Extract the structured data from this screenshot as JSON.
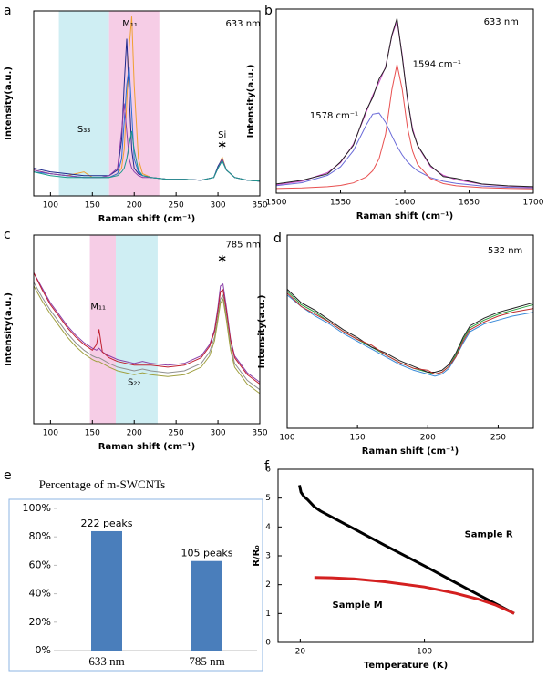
{
  "chart_data": [
    {
      "type": "line",
      "panel": "a",
      "xlabel": "Raman shift (cm⁻¹)",
      "ylabel": "Intensity(a.u.)",
      "annotations": [
        "633 nm",
        "M₁₁",
        "S₃₃",
        "Si",
        "*"
      ],
      "bands": [
        {
          "range": [
            110,
            170
          ],
          "color": "#cfeef3"
        },
        {
          "range": [
            170,
            230
          ],
          "color": "#f6cde6"
        }
      ],
      "xlim": [
        80,
        350
      ],
      "xticks": [
        100,
        150,
        200,
        250,
        300,
        350
      ],
      "ylim": [
        0,
        1
      ],
      "x": [
        80,
        100,
        120,
        140,
        150,
        160,
        170,
        180,
        185,
        188,
        191,
        194,
        197,
        200,
        205,
        210,
        220,
        240,
        260,
        280,
        295,
        300,
        305,
        310,
        320,
        335,
        350
      ],
      "series": [
        {
          "color": "#f0a030",
          "values": [
            0.14,
            0.12,
            0.11,
            0.13,
            0.1,
            0.1,
            0.1,
            0.12,
            0.15,
            0.25,
            0.5,
            0.8,
            0.97,
            0.6,
            0.2,
            0.12,
            0.1,
            0.09,
            0.09,
            0.085,
            0.1,
            0.15,
            0.21,
            0.14,
            0.1,
            0.085,
            0.08
          ]
        },
        {
          "color": "#1f2a8c",
          "values": [
            0.15,
            0.13,
            0.12,
            0.11,
            0.11,
            0.11,
            0.11,
            0.14,
            0.3,
            0.6,
            0.85,
            0.55,
            0.25,
            0.15,
            0.12,
            0.11,
            0.1,
            0.09,
            0.09,
            0.085,
            0.1,
            0.16,
            0.2,
            0.14,
            0.1,
            0.085,
            0.08
          ]
        },
        {
          "color": "#2a6fd6",
          "values": [
            0.13,
            0.12,
            0.11,
            0.1,
            0.1,
            0.1,
            0.1,
            0.12,
            0.2,
            0.4,
            0.6,
            0.7,
            0.45,
            0.2,
            0.13,
            0.11,
            0.1,
            0.09,
            0.09,
            0.085,
            0.1,
            0.15,
            0.19,
            0.14,
            0.1,
            0.085,
            0.08
          ]
        },
        {
          "color": "#8a3fa8",
          "values": [
            0.14,
            0.12,
            0.11,
            0.1,
            0.1,
            0.1,
            0.11,
            0.15,
            0.35,
            0.5,
            0.35,
            0.2,
            0.15,
            0.13,
            0.11,
            0.1,
            0.1,
            0.09,
            0.09,
            0.085,
            0.1,
            0.15,
            0.2,
            0.14,
            0.1,
            0.085,
            0.08
          ]
        },
        {
          "color": "#1a9a8a",
          "values": [
            0.13,
            0.11,
            0.1,
            0.1,
            0.1,
            0.1,
            0.1,
            0.11,
            0.13,
            0.15,
            0.2,
            0.28,
            0.35,
            0.25,
            0.14,
            0.11,
            0.1,
            0.09,
            0.09,
            0.085,
            0.1,
            0.15,
            0.19,
            0.14,
            0.1,
            0.085,
            0.08
          ]
        }
      ]
    },
    {
      "type": "line",
      "panel": "b",
      "xlabel": "Raman shift (cm⁻¹)",
      "ylabel": "Intensity(a.u.)",
      "annotations": [
        "633 nm",
        "1578 cm⁻¹",
        "1594 cm⁻¹"
      ],
      "xlim": [
        1500,
        1700
      ],
      "xticks": [
        1500,
        1550,
        1600,
        1650,
        1700
      ],
      "ylim": [
        0,
        1
      ],
      "x": [
        1500,
        1520,
        1540,
        1550,
        1560,
        1570,
        1575,
        1580,
        1585,
        1590,
        1594,
        1598,
        1602,
        1606,
        1610,
        1620,
        1630,
        1640,
        1660,
        1680,
        1700
      ],
      "series": [
        {
          "color": "#6a6ad8",
          "values": [
            0.041,
            0.057,
            0.097,
            0.143,
            0.23,
            0.37,
            0.429,
            0.435,
            0.385,
            0.311,
            0.255,
            0.208,
            0.171,
            0.143,
            0.121,
            0.085,
            0.065,
            0.053,
            0.039,
            0.032,
            0.029
          ]
        },
        {
          "color": "#e85050",
          "values": [
            0.025,
            0.028,
            0.035,
            0.042,
            0.056,
            0.088,
            0.122,
            0.187,
            0.32,
            0.564,
            0.7,
            0.564,
            0.36,
            0.229,
            0.156,
            0.079,
            0.052,
            0.04,
            0.03,
            0.026,
            0.024
          ]
        },
        {
          "color": "#d050c8",
          "values": [
            0.046,
            0.065,
            0.112,
            0.165,
            0.266,
            0.438,
            0.531,
            0.602,
            0.685,
            0.855,
            0.935,
            0.752,
            0.511,
            0.352,
            0.257,
            0.144,
            0.097,
            0.073,
            0.049,
            0.038,
            0.033
          ]
        },
        {
          "color": "#222222",
          "values": [
            0.05,
            0.07,
            0.105,
            0.17,
            0.26,
            0.45,
            0.52,
            0.62,
            0.68,
            0.86,
            0.95,
            0.74,
            0.52,
            0.34,
            0.26,
            0.15,
            0.09,
            0.08,
            0.05,
            0.04,
            0.035
          ]
        }
      ]
    },
    {
      "type": "line",
      "panel": "c",
      "xlabel": "Raman shift (cm⁻¹)",
      "ylabel": "Intensity(a.u.)",
      "annotations": [
        "785 nm",
        "M₁₁",
        "S₂₂",
        "*"
      ],
      "bands": [
        {
          "range": [
            147,
            178
          ],
          "color": "#f6cde6"
        },
        {
          "range": [
            178,
            228
          ],
          "color": "#cfeef3"
        }
      ],
      "xlim": [
        80,
        350
      ],
      "xticks": [
        100,
        150,
        200,
        250,
        300,
        350
      ],
      "ylim": [
        0,
        1
      ],
      "x": [
        80,
        90,
        100,
        110,
        120,
        130,
        140,
        150,
        155,
        158,
        162,
        170,
        180,
        200,
        210,
        220,
        240,
        260,
        280,
        290,
        296,
        300,
        303,
        306,
        310,
        315,
        320,
        335,
        350
      ],
      "series": [
        {
          "color": "#8a3fa8",
          "values": [
            0.8,
            0.72,
            0.64,
            0.58,
            0.52,
            0.47,
            0.43,
            0.4,
            0.39,
            0.4,
            0.38,
            0.36,
            0.34,
            0.32,
            0.33,
            0.32,
            0.31,
            0.32,
            0.36,
            0.42,
            0.5,
            0.62,
            0.73,
            0.74,
            0.62,
            0.45,
            0.36,
            0.27,
            0.22
          ]
        },
        {
          "color": "#c02030",
          "values": [
            0.8,
            0.71,
            0.63,
            0.57,
            0.51,
            0.46,
            0.42,
            0.39,
            0.42,
            0.5,
            0.38,
            0.35,
            0.33,
            0.31,
            0.31,
            0.31,
            0.3,
            0.31,
            0.35,
            0.41,
            0.49,
            0.6,
            0.7,
            0.71,
            0.6,
            0.44,
            0.35,
            0.26,
            0.21
          ]
        },
        {
          "color": "#909090",
          "values": [
            0.75,
            0.67,
            0.6,
            0.54,
            0.48,
            0.43,
            0.39,
            0.36,
            0.35,
            0.35,
            0.34,
            0.32,
            0.3,
            0.28,
            0.29,
            0.28,
            0.27,
            0.28,
            0.32,
            0.38,
            0.46,
            0.57,
            0.66,
            0.68,
            0.57,
            0.41,
            0.32,
            0.23,
            0.18
          ]
        },
        {
          "color": "#a0a040",
          "values": [
            0.73,
            0.65,
            0.58,
            0.52,
            0.46,
            0.41,
            0.37,
            0.34,
            0.33,
            0.33,
            0.32,
            0.3,
            0.28,
            0.26,
            0.27,
            0.26,
            0.25,
            0.26,
            0.3,
            0.36,
            0.44,
            0.55,
            0.64,
            0.66,
            0.55,
            0.39,
            0.3,
            0.21,
            0.16
          ]
        }
      ]
    },
    {
      "type": "line",
      "panel": "d",
      "xlabel": "Raman shift (cm⁻¹)",
      "ylabel": "Intensity(a.u.)",
      "annotations": [
        "532 nm"
      ],
      "xlim": [
        100,
        275
      ],
      "xticks": [
        100,
        150,
        200,
        250
      ],
      "ylim": [
        0,
        1
      ],
      "x": [
        100,
        110,
        120,
        130,
        140,
        150,
        160,
        170,
        180,
        190,
        200,
        205,
        210,
        215,
        220,
        225,
        230,
        240,
        250,
        260,
        275
      ],
      "series": [
        {
          "color": "#2aa040",
          "values": [
            0.71,
            0.64,
            0.6,
            0.55,
            0.5,
            0.46,
            0.42,
            0.38,
            0.34,
            0.31,
            0.29,
            0.28,
            0.29,
            0.32,
            0.38,
            0.46,
            0.52,
            0.56,
            0.59,
            0.61,
            0.64
          ]
        },
        {
          "color": "#3a8ad8",
          "values": [
            0.69,
            0.63,
            0.58,
            0.54,
            0.49,
            0.45,
            0.41,
            0.37,
            0.33,
            0.3,
            0.28,
            0.27,
            0.28,
            0.31,
            0.37,
            0.44,
            0.5,
            0.54,
            0.56,
            0.58,
            0.6
          ]
        },
        {
          "color": "#222222",
          "values": [
            0.72,
            0.65,
            0.61,
            0.56,
            0.51,
            0.47,
            0.42,
            0.39,
            0.35,
            0.32,
            0.29,
            0.29,
            0.3,
            0.33,
            0.39,
            0.47,
            0.53,
            0.57,
            0.6,
            0.62,
            0.65
          ]
        },
        {
          "color": "#c03030",
          "values": [
            0.7,
            0.63,
            0.59,
            0.55,
            0.5,
            0.46,
            0.43,
            0.38,
            0.34,
            0.31,
            0.3,
            0.28,
            0.29,
            0.32,
            0.37,
            0.45,
            0.51,
            0.55,
            0.58,
            0.6,
            0.62
          ]
        }
      ]
    },
    {
      "type": "bar",
      "panel": "e",
      "title": "Percentage of m-SWCNTs",
      "categories": [
        "633 nm",
        "785 nm"
      ],
      "values": [
        84,
        63
      ],
      "color": "#4a7ebb",
      "annotations": [
        "222 peaks",
        "105 peaks"
      ],
      "ylim": [
        0,
        100
      ],
      "yticks": [
        {
          "value": 0,
          "label": "0%"
        },
        {
          "value": 20,
          "label": "20%"
        },
        {
          "value": 40,
          "label": "40%"
        },
        {
          "value": 60,
          "label": "60%"
        },
        {
          "value": 80,
          "label": "80%"
        },
        {
          "value": 100,
          "label": "100%"
        }
      ]
    },
    {
      "type": "line",
      "panel": "f",
      "xscale": "log",
      "xlabel": "Temperature (K)",
      "ylabel": "R/R₀",
      "xlim": [
        15,
        410
      ],
      "xticks": [
        20,
        100
      ],
      "ylim": [
        0,
        6
      ],
      "yticks": [
        0,
        1,
        2,
        3,
        4,
        5,
        6
      ],
      "series": [
        {
          "name": "Sample R",
          "color": "#000000",
          "x": [
            19.8,
            20.2,
            21,
            22,
            24,
            26,
            30,
            40,
            60,
            100,
            150,
            200,
            250,
            320
          ],
          "values": [
            5.45,
            5.2,
            5.05,
            4.95,
            4.7,
            4.55,
            4.35,
            3.94,
            3.36,
            2.65,
            2.07,
            1.66,
            1.35,
            1.0
          ]
        },
        {
          "name": "Sample M",
          "color": "#d42020",
          "x": [
            24,
            30,
            40,
            60,
            100,
            150,
            200,
            250,
            320
          ],
          "values": [
            2.25,
            2.24,
            2.2,
            2.1,
            1.92,
            1.7,
            1.5,
            1.3,
            1.0
          ]
        }
      ]
    }
  ]
}
